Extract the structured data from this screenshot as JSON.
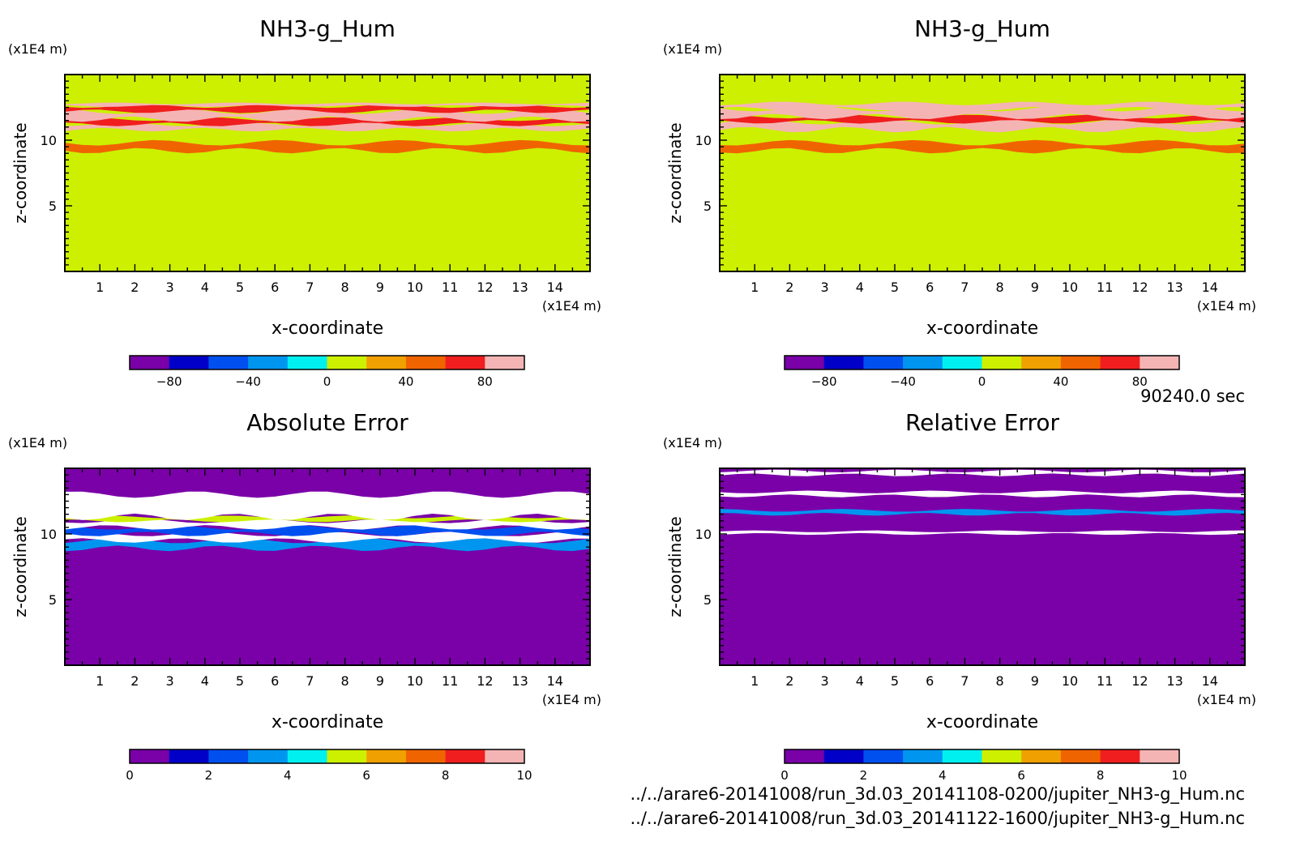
{
  "time_label": "90240.0 sec",
  "files": [
    "../../arare6-20141008/run_3d.03_20141108-0200/jupiter_NH3-g_Hum.nc",
    "../../arare6-20141008/run_3d.03_20141122-1600/jupiter_NH3-g_Hum.nc"
  ],
  "colors": {
    "levels": [
      "#7a00a8",
      "#0000c8",
      "#0050f0",
      "#0096f0",
      "#00f0f0",
      "#ccf000",
      "#f0a000",
      "#f06400",
      "#f01e1e",
      "#f5b4b4"
    ],
    "background_field": "#d4ff00"
  },
  "chart_data": [
    {
      "type": "heatmap",
      "title": "NH3-g_Hum",
      "xlabel": "x-coordinate",
      "ylabel": "z-coordinate",
      "x_unit": "(x1E4 m)",
      "y_unit": "(x1E4 m)",
      "xlim": [
        0,
        15
      ],
      "ylim": [
        0,
        15
      ],
      "x_ticks": [
        1,
        2,
        3,
        4,
        5,
        6,
        7,
        8,
        9,
        10,
        11,
        12,
        13,
        14
      ],
      "y_ticks": [
        5,
        10
      ],
      "colorbar": {
        "min": -100,
        "max": 100,
        "step": 20,
        "tick_values": [
          -80,
          -40,
          0,
          40,
          80
        ],
        "tick_labels": [
          "−80",
          "−40",
          "0",
          "40",
          "80"
        ]
      },
      "background_value": 10,
      "layers": [
        {
          "z": [
            9.2,
            9.8
          ],
          "value": 50
        },
        {
          "z": [
            10.8,
            11.2
          ],
          "value": 90
        },
        {
          "z": [
            11.2,
            11.6
          ],
          "value": 70
        },
        {
          "z": [
            11.6,
            12.2
          ],
          "value": 95
        },
        {
          "z": [
            12.2,
            12.6
          ],
          "value": 70
        },
        {
          "z": [
            12.6,
            12.8
          ],
          "value": 85
        }
      ]
    },
    {
      "type": "heatmap",
      "title": "NH3-g_Hum",
      "xlabel": "x-coordinate",
      "ylabel": "z-coordinate",
      "x_unit": "(x1E4 m)",
      "y_unit": "(x1E4 m)",
      "xlim": [
        0,
        15
      ],
      "ylim": [
        0,
        15
      ],
      "x_ticks": [
        1,
        2,
        3,
        4,
        5,
        6,
        7,
        8,
        9,
        10,
        11,
        12,
        13,
        14
      ],
      "y_ticks": [
        5,
        10
      ],
      "colorbar": {
        "min": -100,
        "max": 100,
        "step": 20,
        "tick_values": [
          -80,
          -40,
          0,
          40,
          80
        ],
        "tick_labels": [
          "−80",
          "−40",
          "0",
          "40",
          "80"
        ]
      },
      "background_value": 10,
      "layers": [
        {
          "z": [
            9.2,
            9.8
          ],
          "value": 50
        },
        {
          "z": [
            10.8,
            11.4
          ],
          "value": 90
        },
        {
          "z": [
            11.4,
            11.8
          ],
          "value": 70
        },
        {
          "z": [
            11.8,
            12.4
          ],
          "value": 95
        },
        {
          "z": [
            12.4,
            12.8
          ],
          "value": 85
        }
      ]
    },
    {
      "type": "heatmap",
      "title": "Absolute Error",
      "xlabel": "x-coordinate",
      "ylabel": "z-coordinate",
      "x_unit": "(x1E4 m)",
      "y_unit": "(x1E4 m)",
      "xlim": [
        0,
        15
      ],
      "ylim": [
        0,
        15
      ],
      "x_ticks": [
        1,
        2,
        3,
        4,
        5,
        6,
        7,
        8,
        9,
        10,
        11,
        12,
        13,
        14
      ],
      "y_ticks": [
        5,
        10
      ],
      "colorbar": {
        "min": 0,
        "max": 10,
        "step": 1,
        "tick_values": [
          0,
          2,
          4,
          6,
          8,
          10
        ],
        "tick_labels": [
          "0",
          "2",
          "4",
          "6",
          "8",
          "10"
        ]
      },
      "background_value": 0.5,
      "layers": [
        {
          "z": [
            8.9,
            9.5
          ],
          "value": 3.5
        },
        {
          "z": [
            9.5,
            10.0
          ],
          "value": 12
        },
        {
          "z": [
            10.0,
            10.5
          ],
          "value": 2.5
        },
        {
          "z": [
            10.5,
            11.0
          ],
          "value": 12
        },
        {
          "z": [
            11.0,
            11.3
          ],
          "value": 5.5
        },
        {
          "z": [
            11.3,
            13.0
          ],
          "value": 12
        }
      ]
    },
    {
      "type": "heatmap",
      "title": "Relative Error",
      "xlabel": "x-coordinate",
      "ylabel": "z-coordinate",
      "x_unit": "(x1E4 m)",
      "y_unit": "(x1E4 m)",
      "xlim": [
        0,
        15
      ],
      "ylim": [
        0,
        15
      ],
      "x_ticks": [
        1,
        2,
        3,
        4,
        5,
        6,
        7,
        8,
        9,
        10,
        11,
        12,
        13,
        14
      ],
      "y_ticks": [
        5,
        10
      ],
      "colorbar": {
        "min": 0,
        "max": 10,
        "step": 1,
        "tick_values": [
          0,
          2,
          4,
          6,
          8,
          10
        ],
        "tick_labels": [
          "0",
          "2",
          "4",
          "6",
          "8",
          "10"
        ]
      },
      "background_value": 0.5,
      "layers": [
        {
          "z": [
            10.0,
            10.2
          ],
          "value": 12
        },
        {
          "z": [
            11.5,
            11.8
          ],
          "value": 3.5
        },
        {
          "z": [
            12.9,
            13.2
          ],
          "value": 12
        },
        {
          "z": [
            14.5,
            14.8
          ],
          "value": 12
        }
      ]
    }
  ]
}
